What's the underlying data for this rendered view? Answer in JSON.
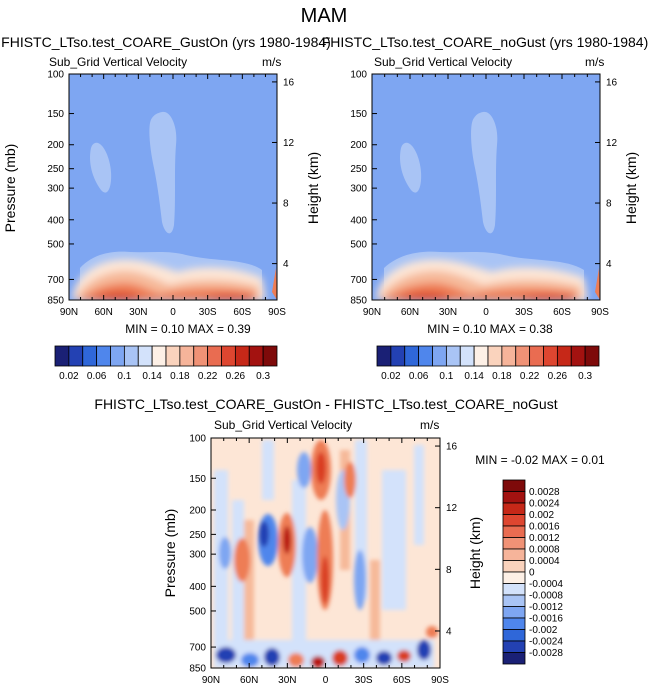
{
  "page_title": "MAM",
  "colors": {
    "background_field": "#7ea6f2",
    "lighter_field": "#a9c4f5",
    "warm_1": "#fde6d6",
    "warm_2": "#f6b99a",
    "warm_3": "#ee7d55",
    "warm_4": "#d93c22",
    "warm_5": "#b8160f"
  },
  "chart_data": [
    {
      "type": "heatmap",
      "title": "FHISTC_LTso.test_COARE_GustOn (yrs 1980-1984)",
      "subtitle": "Sub_Grid Vertical Velocity",
      "units": "m/s",
      "ylabel": "Pressure (mb)",
      "ylabel_right": "Height (km)",
      "x_ticks": [
        "90N",
        "60N",
        "30N",
        "0",
        "30S",
        "60S",
        "90S"
      ],
      "y_ticks": [
        "100",
        "150",
        "200",
        "250",
        "300",
        "400",
        "500",
        "700",
        "850"
      ],
      "right_ticks": [
        "16",
        "12",
        "8",
        "4"
      ],
      "stats_text": "MIN =  0.10  MAX =  0.39",
      "colorbar_labels": [
        "0.02",
        "0.06",
        "0.1",
        "0.14",
        "0.18",
        "0.22",
        "0.26",
        "0.3"
      ],
      "colorbar_colors": [
        "#1a2075",
        "#2341b3",
        "#2f67d9",
        "#4f86ec",
        "#7ea6f2",
        "#a9c4f5",
        "#d3e2fb",
        "#fdf0e6",
        "#fad3bd",
        "#f6b49a",
        "#f09276",
        "#e96c51",
        "#de4630",
        "#c62818",
        "#a31210",
        "#7e0a0a"
      ]
    },
    {
      "type": "heatmap",
      "title": "FHISTC_LTso.test_COARE_noGust (yrs 1980-1984)",
      "subtitle": "Sub_Grid Vertical Velocity",
      "units": "m/s",
      "ylabel": "Height (km)",
      "x_ticks": [
        "90N",
        "60N",
        "30N",
        "0",
        "30S",
        "60S",
        "90S"
      ],
      "y_ticks": [
        "100",
        "150",
        "200",
        "250",
        "300",
        "400",
        "500",
        "700",
        "850"
      ],
      "right_ticks": [
        "16",
        "12",
        "8",
        "4"
      ],
      "stats_text": "MIN =  0.10  MAX =  0.38",
      "colorbar_labels": [
        "0.02",
        "0.06",
        "0.1",
        "0.14",
        "0.18",
        "0.22",
        "0.26",
        "0.3"
      ],
      "colorbar_colors": [
        "#1a2075",
        "#2341b3",
        "#2f67d9",
        "#4f86ec",
        "#7ea6f2",
        "#a9c4f5",
        "#d3e2fb",
        "#fdf0e6",
        "#fad3bd",
        "#f6b49a",
        "#f09276",
        "#e96c51",
        "#de4630",
        "#c62818",
        "#a31210",
        "#7e0a0a"
      ]
    },
    {
      "type": "heatmap",
      "title": "FHISTC_LTso.test_COARE_GustOn - FHISTC_LTso.test_COARE_noGust",
      "subtitle": "Sub_Grid Vertical Velocity",
      "units": "m/s",
      "ylabel": "Pressure (mb)",
      "ylabel_right": "Height (km)",
      "x_ticks": [
        "90N",
        "60N",
        "30N",
        "0",
        "30S",
        "60S",
        "90S"
      ],
      "y_ticks": [
        "100",
        "150",
        "200",
        "250",
        "300",
        "400",
        "500",
        "700",
        "850"
      ],
      "right_ticks": [
        "16",
        "12",
        "8",
        "4"
      ],
      "stats_text": "MIN = -0.02  MAX =  0.01",
      "colorbar_labels": [
        "0.0028",
        "0.0024",
        "0.002",
        "0.0016",
        "0.0012",
        "0.0008",
        "0.0004",
        "0",
        "-0.0004",
        "-0.0008",
        "-0.0012",
        "-0.0016",
        "-0.002",
        "-0.0024",
        "-0.0028"
      ],
      "colorbar_colors": [
        "#7e0a0a",
        "#a31210",
        "#c62818",
        "#de4630",
        "#e96c51",
        "#f09276",
        "#f6b49a",
        "#fad3bd",
        "#fdf0e6",
        "#d3e2fb",
        "#a9c4f5",
        "#7ea6f2",
        "#4f86ec",
        "#2f67d9",
        "#2341b3",
        "#1a2075"
      ]
    }
  ]
}
